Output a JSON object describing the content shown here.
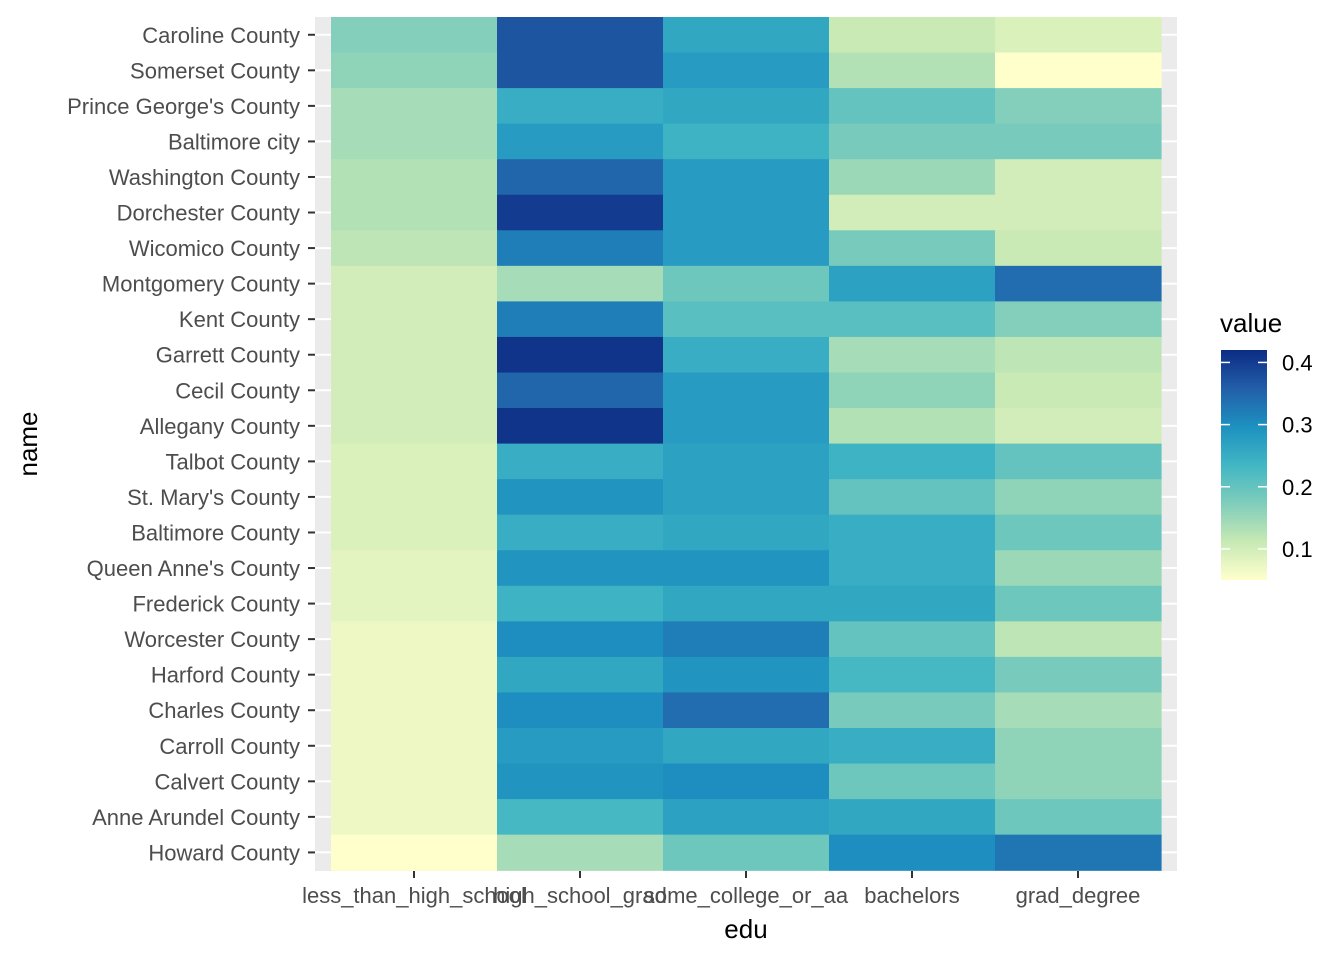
{
  "chart_data": {
    "type": "heatmap",
    "xlabel": "edu",
    "ylabel": "name",
    "x_categories": [
      "less_than_high_school",
      "high_school_grad",
      "some_college_or_aa",
      "bachelors",
      "grad_degree"
    ],
    "y_categories": [
      "Caroline County",
      "Somerset County",
      "Prince George's County",
      "Baltimore city",
      "Washington County",
      "Dorchester County",
      "Wicomico County",
      "Montgomery County",
      "Kent County",
      "Garrett County",
      "Cecil County",
      "Allegany County",
      "Talbot County",
      "St. Mary's County",
      "Baltimore County",
      "Queen Anne's County",
      "Frederick County",
      "Worcester County",
      "Harford County",
      "Charles County",
      "Carroll County",
      "Calvert County",
      "Anne Arundel County",
      "Howard County"
    ],
    "values": [
      [
        0.17,
        0.37,
        0.26,
        0.11,
        0.09
      ],
      [
        0.16,
        0.37,
        0.28,
        0.13,
        0.05
      ],
      [
        0.14,
        0.25,
        0.26,
        0.2,
        0.17
      ],
      [
        0.14,
        0.28,
        0.24,
        0.18,
        0.18
      ],
      [
        0.13,
        0.35,
        0.28,
        0.15,
        0.1
      ],
      [
        0.13,
        0.4,
        0.28,
        0.1,
        0.1
      ],
      [
        0.12,
        0.32,
        0.28,
        0.18,
        0.11
      ],
      [
        0.1,
        0.14,
        0.19,
        0.27,
        0.34
      ],
      [
        0.1,
        0.32,
        0.21,
        0.21,
        0.17
      ],
      [
        0.1,
        0.41,
        0.25,
        0.14,
        0.12
      ],
      [
        0.1,
        0.35,
        0.28,
        0.16,
        0.11
      ],
      [
        0.1,
        0.41,
        0.28,
        0.13,
        0.1
      ],
      [
        0.09,
        0.25,
        0.27,
        0.24,
        0.2
      ],
      [
        0.09,
        0.29,
        0.27,
        0.2,
        0.16
      ],
      [
        0.09,
        0.25,
        0.26,
        0.25,
        0.19
      ],
      [
        0.08,
        0.29,
        0.29,
        0.25,
        0.15
      ],
      [
        0.08,
        0.24,
        0.26,
        0.26,
        0.19
      ],
      [
        0.07,
        0.3,
        0.32,
        0.2,
        0.12
      ],
      [
        0.07,
        0.26,
        0.29,
        0.23,
        0.18
      ],
      [
        0.07,
        0.3,
        0.34,
        0.18,
        0.14
      ],
      [
        0.07,
        0.28,
        0.26,
        0.25,
        0.16
      ],
      [
        0.07,
        0.29,
        0.3,
        0.19,
        0.16
      ],
      [
        0.07,
        0.23,
        0.27,
        0.26,
        0.19
      ],
      [
        0.05,
        0.14,
        0.19,
        0.3,
        0.33
      ]
    ],
    "legend": {
      "title": "value",
      "breaks": [
        0.1,
        0.2,
        0.3,
        0.4
      ],
      "labels": [
        "0.1",
        "0.2",
        "0.3",
        "0.4"
      ],
      "range": [
        0.05,
        0.42
      ],
      "palette": "YlGnBu"
    },
    "colors": [
      "#ffffcc",
      "#c7e9b4",
      "#7fcdbb",
      "#41b6c4",
      "#1d91c0",
      "#225ea8",
      "#0c2c84"
    ],
    "panel_background": "#ebebeb",
    "grid": true
  }
}
